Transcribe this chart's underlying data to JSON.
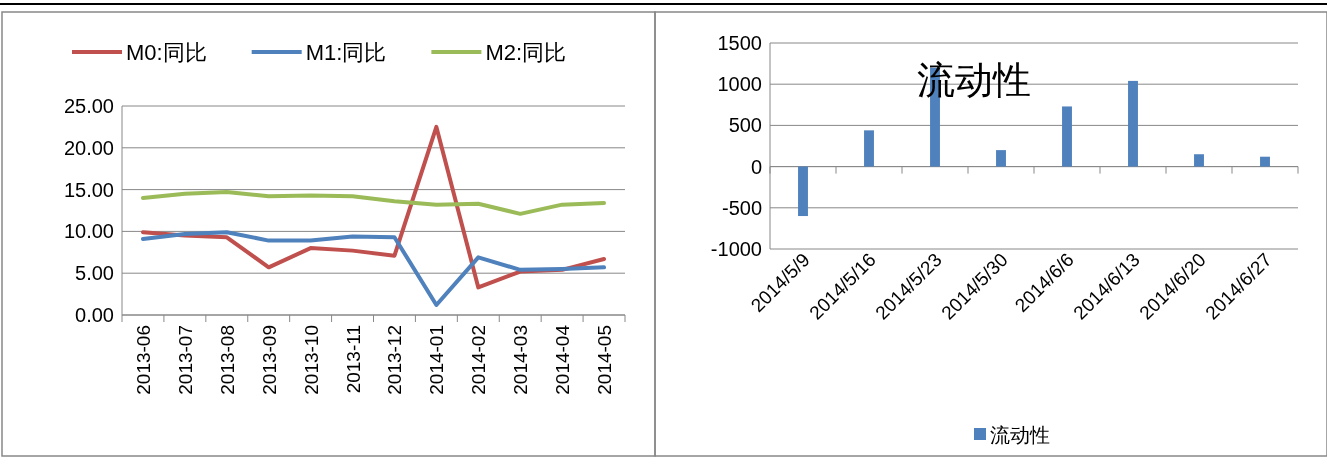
{
  "chart_data": [
    {
      "type": "line",
      "categories": [
        "2013-06",
        "2013-07",
        "2013-08",
        "2013-09",
        "2013-10",
        "2013-11",
        "2013-12",
        "2014-01",
        "2014-02",
        "2014-03",
        "2014-04",
        "2014-05"
      ],
      "series": [
        {
          "name": "M0:同比",
          "color": "#c0504d",
          "values": [
            9.9,
            9.5,
            9.3,
            5.7,
            8.0,
            7.7,
            7.1,
            22.5,
            3.3,
            5.2,
            5.4,
            6.7
          ]
        },
        {
          "name": "M1:同比",
          "color": "#4f81bd",
          "values": [
            9.1,
            9.7,
            9.9,
            8.9,
            8.9,
            9.4,
            9.3,
            1.2,
            6.9,
            5.4,
            5.5,
            5.7
          ]
        },
        {
          "name": "M2:同比",
          "color": "#9bbb59",
          "values": [
            14.0,
            14.5,
            14.7,
            14.2,
            14.3,
            14.2,
            13.6,
            13.2,
            13.3,
            12.1,
            13.2,
            13.4
          ]
        }
      ],
      "ylim": [
        0,
        25
      ],
      "yticks": [
        {
          "value": 0,
          "label": "0.00"
        },
        {
          "value": 5,
          "label": "5.00"
        },
        {
          "value": 10,
          "label": "10.00"
        },
        {
          "value": 15,
          "label": "15.00"
        },
        {
          "value": 20,
          "label": "20.00"
        },
        {
          "value": 25,
          "label": "25.00"
        }
      ],
      "grid": "y",
      "legend": "top",
      "marker": "none"
    },
    {
      "type": "bar",
      "title": "流动性",
      "categories": [
        "2014/5/9",
        "2014/5/16",
        "2014/5/23",
        "2014/5/30",
        "2014/6/6",
        "2014/6/13",
        "2014/6/20",
        "2014/6/27"
      ],
      "series": [
        {
          "name": "流动性",
          "color": "#4f81bd",
          "values": [
            -600,
            440,
            1200,
            200,
            730,
            1040,
            150,
            120
          ]
        }
      ],
      "ylim": [
        -1000,
        1500
      ],
      "yticks": [
        -1000,
        -500,
        0,
        500,
        1000,
        1500
      ],
      "grid": "y",
      "legend": "bottom"
    }
  ]
}
